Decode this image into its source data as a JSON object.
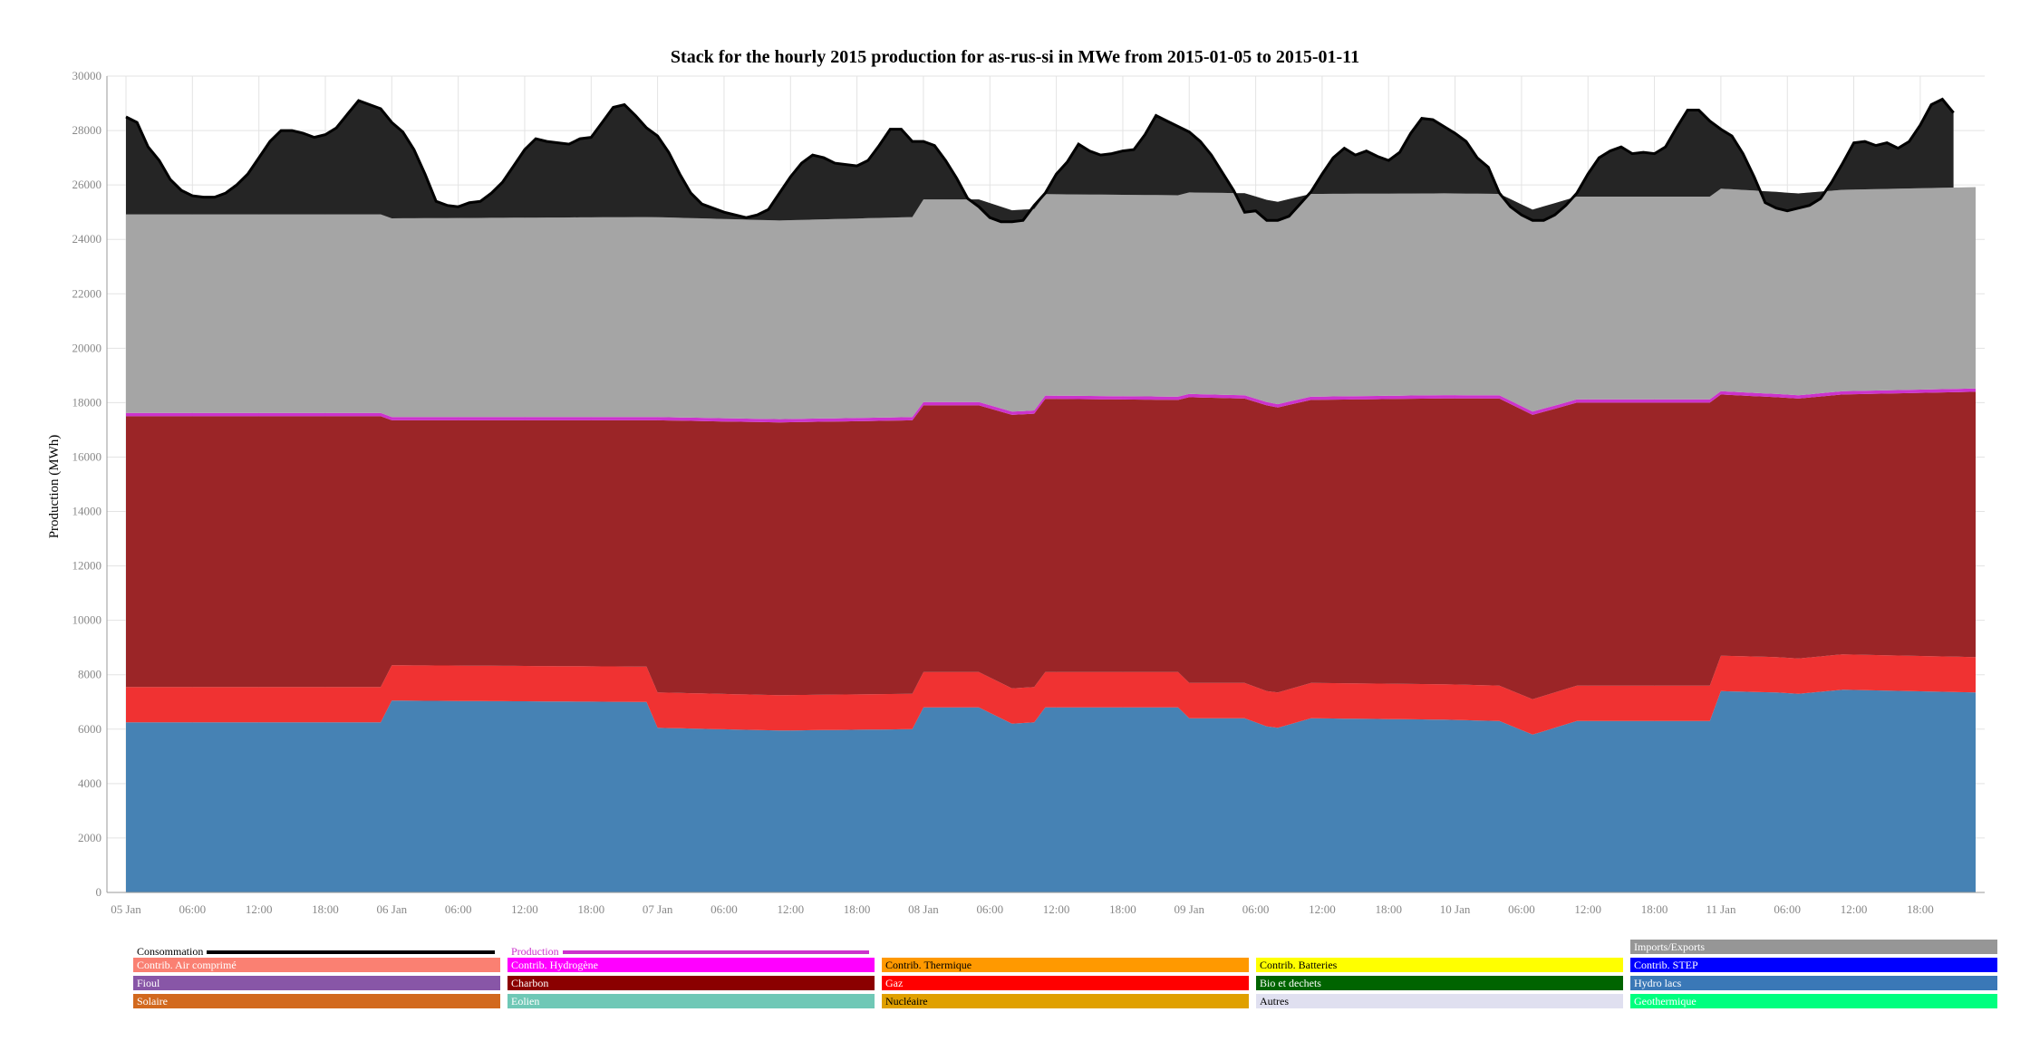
{
  "chart_data": {
    "type": "area",
    "title": "Stack for the hourly 2015 production for as-rus-si in MWe from 2015-01-05 to 2015-01-11",
    "ylabel": "Production (MWh)",
    "xlabel": "",
    "ylim": [
      0,
      30000
    ],
    "yticks": [
      "0",
      "2000",
      "4000",
      "6000",
      "8000",
      "10000",
      "12000",
      "14000",
      "16000",
      "18000",
      "20000",
      "22000",
      "24000",
      "26000",
      "28000",
      "30000"
    ],
    "xticks": [
      "05 Jan",
      "06:00",
      "12:00",
      "18:00",
      "06 Jan",
      "06:00",
      "12:00",
      "18:00",
      "07 Jan",
      "06:00",
      "12:00",
      "18:00",
      "08 Jan",
      "06:00",
      "12:00",
      "18:00",
      "09 Jan",
      "06:00",
      "12:00",
      "18:00",
      "10 Jan",
      "06:00",
      "12:00",
      "18:00",
      "11 Jan",
      "06:00",
      "12:00",
      "18:00"
    ],
    "grid": true,
    "hours": 167,
    "series": [
      {
        "name": "Hydro lacs",
        "color": "#4682b4",
        "keyframes": [
          [
            0,
            6250
          ],
          [
            23,
            6250
          ],
          [
            24,
            7050
          ],
          [
            47,
            7000
          ],
          [
            48,
            6050
          ],
          [
            59,
            5950
          ],
          [
            71,
            6000
          ],
          [
            72,
            6800
          ],
          [
            77,
            6800
          ],
          [
            80,
            6200
          ],
          [
            82,
            6250
          ],
          [
            83,
            6800
          ],
          [
            95,
            6800
          ],
          [
            96,
            6400
          ],
          [
            101,
            6400
          ],
          [
            103,
            6100
          ],
          [
            104,
            6050
          ],
          [
            107,
            6400
          ],
          [
            119,
            6350
          ],
          [
            124,
            6300
          ],
          [
            127,
            5800
          ],
          [
            131,
            6300
          ],
          [
            143,
            6300
          ],
          [
            144,
            7400
          ],
          [
            149,
            7350
          ],
          [
            151,
            7300
          ],
          [
            155,
            7450
          ],
          [
            167,
            7350
          ]
        ]
      },
      {
        "name": "Gaz",
        "color": "#f03232",
        "keyframes": [
          [
            0,
            1300
          ],
          [
            167,
            1300
          ]
        ]
      },
      {
        "name": "Charbon",
        "color": "#9b2527",
        "keyframes": [
          [
            0,
            9950
          ],
          [
            23,
            9950
          ],
          [
            24,
            9000
          ],
          [
            47,
            9050
          ],
          [
            48,
            10000
          ],
          [
            71,
            10050
          ],
          [
            72,
            9800
          ],
          [
            77,
            9800
          ],
          [
            80,
            10050
          ],
          [
            95,
            10000
          ],
          [
            96,
            10500
          ],
          [
            101,
            10450
          ],
          [
            103,
            10500
          ],
          [
            107,
            10400
          ],
          [
            124,
            10550
          ],
          [
            127,
            10450
          ],
          [
            131,
            10400
          ],
          [
            143,
            10400
          ],
          [
            144,
            9600
          ],
          [
            149,
            9550
          ],
          [
            155,
            9550
          ],
          [
            167,
            9750
          ]
        ]
      },
      {
        "name": "Production",
        "color": "#cc33cc",
        "keyframes": [
          [
            0,
            120
          ],
          [
            167,
            120
          ]
        ]
      },
      {
        "name": "Nucléaire",
        "color": "#a5a5a5",
        "keyframes": [
          [
            0,
            7300
          ],
          [
            23,
            7300
          ],
          [
            47,
            7350
          ],
          [
            59,
            7300
          ],
          [
            71,
            7350
          ],
          [
            72,
            7450
          ],
          [
            77,
            7450
          ],
          [
            80,
            7400
          ],
          [
            95,
            7400
          ],
          [
            107,
            7450
          ],
          [
            124,
            7400
          ],
          [
            131,
            7450
          ],
          [
            143,
            7450
          ],
          [
            155,
            7400
          ],
          [
            167,
            7400
          ]
        ]
      }
    ],
    "consumption": {
      "name": "Consommation",
      "color": "#000000",
      "keyframes": [
        [
          0,
          28500
        ],
        [
          1,
          28300
        ],
        [
          2,
          27400
        ],
        [
          3,
          26900
        ],
        [
          4,
          26200
        ],
        [
          5,
          25800
        ],
        [
          6,
          25600
        ],
        [
          7,
          25550
        ],
        [
          8,
          25550
        ],
        [
          9,
          25700
        ],
        [
          10,
          26000
        ],
        [
          11,
          26400
        ],
        [
          12,
          27000
        ],
        [
          13,
          27600
        ],
        [
          14,
          28000
        ],
        [
          15,
          28000
        ],
        [
          16,
          27900
        ],
        [
          17,
          27750
        ],
        [
          18,
          27850
        ],
        [
          19,
          28100
        ],
        [
          20,
          28600
        ],
        [
          21,
          29100
        ],
        [
          22,
          28950
        ],
        [
          23,
          28800
        ],
        [
          24,
          28300
        ],
        [
          25,
          27950
        ],
        [
          26,
          27300
        ],
        [
          27,
          26400
        ],
        [
          28,
          25400
        ],
        [
          29,
          25250
        ],
        [
          30,
          25200
        ],
        [
          31,
          25350
        ],
        [
          32,
          25400
        ],
        [
          33,
          25700
        ],
        [
          34,
          26100
        ],
        [
          35,
          26700
        ],
        [
          36,
          27300
        ],
        [
          37,
          27700
        ],
        [
          38,
          27600
        ],
        [
          39,
          27550
        ],
        [
          40,
          27500
        ],
        [
          41,
          27700
        ],
        [
          42,
          27750
        ],
        [
          43,
          28300
        ],
        [
          44,
          28850
        ],
        [
          45,
          28950
        ],
        [
          46,
          28550
        ],
        [
          47,
          28100
        ],
        [
          48,
          27800
        ],
        [
          49,
          27200
        ],
        [
          50,
          26400
        ],
        [
          51,
          25700
        ],
        [
          52,
          25300
        ],
        [
          53,
          25150
        ],
        [
          54,
          25000
        ],
        [
          55,
          24900
        ],
        [
          56,
          24800
        ],
        [
          57,
          24900
        ],
        [
          58,
          25100
        ],
        [
          59,
          25700
        ],
        [
          60,
          26300
        ],
        [
          61,
          26800
        ],
        [
          62,
          27100
        ],
        [
          63,
          27000
        ],
        [
          64,
          26800
        ],
        [
          65,
          26750
        ],
        [
          66,
          26700
        ],
        [
          67,
          26900
        ],
        [
          68,
          27450
        ],
        [
          69,
          28050
        ],
        [
          70,
          28050
        ],
        [
          71,
          27600
        ],
        [
          72,
          27600
        ],
        [
          73,
          27450
        ],
        [
          74,
          26900
        ],
        [
          75,
          26250
        ],
        [
          76,
          25500
        ],
        [
          77,
          25200
        ],
        [
          78,
          24800
        ],
        [
          79,
          24650
        ],
        [
          80,
          24650
        ],
        [
          81,
          24700
        ],
        [
          82,
          25250
        ],
        [
          83,
          25700
        ],
        [
          84,
          26400
        ],
        [
          85,
          26850
        ],
        [
          86,
          27500
        ],
        [
          87,
          27250
        ],
        [
          88,
          27100
        ],
        [
          89,
          27150
        ],
        [
          90,
          27250
        ],
        [
          91,
          27300
        ],
        [
          92,
          27850
        ],
        [
          93,
          28550
        ],
        [
          94,
          28350
        ],
        [
          95,
          28150
        ],
        [
          96,
          27950
        ],
        [
          97,
          27600
        ],
        [
          98,
          27100
        ],
        [
          99,
          26450
        ],
        [
          100,
          25800
        ],
        [
          101,
          25000
        ],
        [
          102,
          25050
        ],
        [
          103,
          24700
        ],
        [
          104,
          24700
        ],
        [
          105,
          24850
        ],
        [
          106,
          25300
        ],
        [
          107,
          25750
        ],
        [
          108,
          26400
        ],
        [
          109,
          27000
        ],
        [
          110,
          27350
        ],
        [
          111,
          27100
        ],
        [
          112,
          27250
        ],
        [
          113,
          27050
        ],
        [
          114,
          26900
        ],
        [
          115,
          27200
        ],
        [
          116,
          27900
        ],
        [
          117,
          28450
        ],
        [
          118,
          28400
        ],
        [
          119,
          28150
        ],
        [
          120,
          27900
        ],
        [
          121,
          27600
        ],
        [
          122,
          27000
        ],
        [
          123,
          26650
        ],
        [
          124,
          25700
        ],
        [
          125,
          25200
        ],
        [
          126,
          24900
        ],
        [
          127,
          24700
        ],
        [
          128,
          24700
        ],
        [
          129,
          24900
        ],
        [
          130,
          25250
        ],
        [
          131,
          25700
        ],
        [
          132,
          26400
        ],
        [
          133,
          27000
        ],
        [
          134,
          27250
        ],
        [
          135,
          27400
        ],
        [
          136,
          27150
        ],
        [
          137,
          27200
        ],
        [
          138,
          27150
        ],
        [
          139,
          27400
        ],
        [
          140,
          28100
        ],
        [
          141,
          28750
        ],
        [
          142,
          28750
        ],
        [
          143,
          28350
        ],
        [
          144,
          28050
        ],
        [
          145,
          27800
        ],
        [
          146,
          27150
        ],
        [
          147,
          26300
        ],
        [
          148,
          25350
        ],
        [
          149,
          25150
        ],
        [
          150,
          25050
        ],
        [
          151,
          25150
        ],
        [
          152,
          25250
        ],
        [
          153,
          25500
        ],
        [
          154,
          26100
        ],
        [
          155,
          26800
        ],
        [
          156,
          27550
        ],
        [
          157,
          27600
        ],
        [
          158,
          27450
        ],
        [
          159,
          27550
        ],
        [
          160,
          27350
        ],
        [
          161,
          27600
        ],
        [
          162,
          28200
        ],
        [
          163,
          28950
        ],
        [
          164,
          29150
        ],
        [
          165,
          28650
        ]
      ]
    },
    "legend_placement": "bottom"
  },
  "legend": {
    "consumption_label": "Consommation",
    "production_label": "Production",
    "items": [
      {
        "label": "Imports/Exports",
        "color": "#969696"
      },
      {
        "label": "Contrib. Air comprimé",
        "color": "#fa8072"
      },
      {
        "label": "Contrib. Hydrogène",
        "color": "#ff00ff"
      },
      {
        "label": "Contrib. Thermique",
        "color": "#ff9900"
      },
      {
        "label": "Contrib. Batteries",
        "color": "#ffff00"
      },
      {
        "label": "Contrib. STEP",
        "color": "#0000ff"
      },
      {
        "label": "Fioul",
        "color": "#8856a7"
      },
      {
        "label": "Charbon",
        "color": "#8b0000"
      },
      {
        "label": "Gaz",
        "color": "#ff0000"
      },
      {
        "label": "Bio et dechets",
        "color": "#006400"
      },
      {
        "label": "Hydro lacs",
        "color": "#3a78b7"
      },
      {
        "label": "Solaire",
        "color": "#d2691e"
      },
      {
        "label": "Eolien",
        "color": "#6fc8b6"
      },
      {
        "label": "Nucléaire",
        "color": "#e0a000"
      },
      {
        "label": "Autres",
        "color": "#e0e0f0"
      },
      {
        "label": "Geothermique",
        "color": "#00ff7f"
      }
    ]
  }
}
